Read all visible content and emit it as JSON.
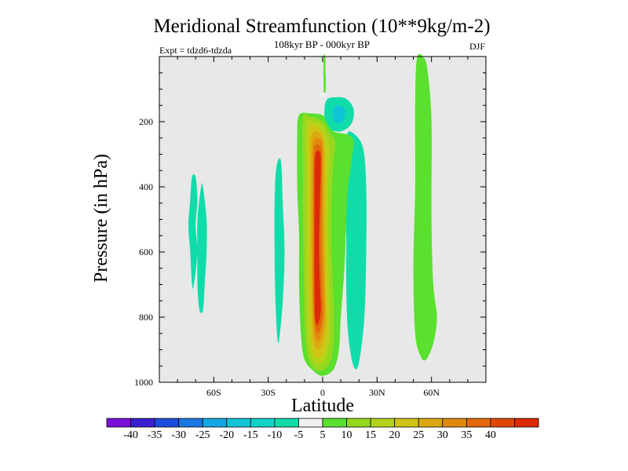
{
  "chart_data": {
    "type": "filled-contour",
    "title": "Meridional Streamfunction (10**9kg/m-2)",
    "subtitle": "108kyr BP - 000kyr BP",
    "left_label": "Expt = tdzd6-tdzda",
    "right_label": "DJF",
    "xlabel": "Latitude",
    "ylabel": "Pressure (in hPa)",
    "xlim": [
      -90,
      90
    ],
    "ylim": [
      1000,
      0
    ],
    "x_ticks": [
      {
        "value": -60,
        "label": "60S"
      },
      {
        "value": -30,
        "label": "30S"
      },
      {
        "value": 0,
        "label": "0"
      },
      {
        "value": 30,
        "label": "30N"
      },
      {
        "value": 60,
        "label": "60N"
      }
    ],
    "y_ticks": [
      {
        "value": 200,
        "label": "200"
      },
      {
        "value": 400,
        "label": "400"
      },
      {
        "value": 600,
        "label": "600"
      },
      {
        "value": 800,
        "label": "800"
      },
      {
        "value": 1000,
        "label": "1000"
      }
    ],
    "background_color": "#e8e8e8",
    "colorbar": {
      "colors": [
        "#7a10d8",
        "#3a22d0",
        "#1c4ddc",
        "#1a77e0",
        "#12a6e2",
        "#10c4d8",
        "#10d3c8",
        "#10dcaa",
        "#f0f0f0",
        "#5ae02e",
        "#96d81e",
        "#b4d41a",
        "#d0c414",
        "#dca810",
        "#e08a0e",
        "#e2680c",
        "#e0460a",
        "#dc2a08"
      ],
      "labels": [
        "-40",
        "-35",
        "-30",
        "-25",
        "-20",
        "-15",
        "-10",
        "-5",
        "5",
        "10",
        "15",
        "20",
        "25",
        "30",
        "35",
        "40"
      ]
    },
    "regions": [
      {
        "name": "sh-subtropical-negative",
        "color_index": 7,
        "points": [
          [
            -70,
            370
          ],
          [
            -69,
            440
          ],
          [
            -70,
            520
          ],
          [
            -69,
            600
          ],
          [
            -71,
            700
          ],
          [
            -72,
            700
          ],
          [
            -73,
            600
          ],
          [
            -74,
            520
          ],
          [
            -73,
            440
          ],
          [
            -72,
            370
          ]
        ]
      },
      {
        "name": "sh-midlat-negative",
        "color_index": 7,
        "points": [
          [
            -66,
            400
          ],
          [
            -64,
            500
          ],
          [
            -64,
            600
          ],
          [
            -65,
            700
          ],
          [
            -66,
            780
          ],
          [
            -68,
            775
          ],
          [
            -69,
            700
          ],
          [
            -69,
            600
          ],
          [
            -69,
            500
          ],
          [
            -67,
            400
          ]
        ]
      },
      {
        "name": "sh-tropical-negative",
        "color_index": 7,
        "points": [
          [
            -23,
            320
          ],
          [
            -22,
            450
          ],
          [
            -21,
            600
          ],
          [
            -22,
            750
          ],
          [
            -24,
            870
          ],
          [
            -25,
            860
          ],
          [
            -26,
            750
          ],
          [
            -26.5,
            600
          ],
          [
            -26.5,
            450
          ],
          [
            -25.5,
            340
          ]
        ]
      },
      {
        "name": "nh-subtropical-negative",
        "color_index": 7,
        "points": [
          [
            15,
            230
          ],
          [
            22,
            275
          ],
          [
            24,
            400
          ],
          [
            24,
            600
          ],
          [
            23,
            800
          ],
          [
            20,
            940
          ],
          [
            17,
            950
          ],
          [
            14,
            850
          ],
          [
            13,
            700
          ],
          [
            13,
            550
          ],
          [
            12,
            350
          ],
          [
            13,
            260
          ]
        ]
      },
      {
        "name": "upper-negative-cell",
        "color_index": 7,
        "points": [
          [
            2,
            135
          ],
          [
            7,
            125
          ],
          [
            13,
            130
          ],
          [
            17,
            160
          ],
          [
            16,
            205
          ],
          [
            10,
            230
          ],
          [
            3,
            220
          ],
          [
            1,
            185
          ]
        ]
      },
      {
        "name": "upper-negative-core",
        "color_index": 5,
        "points": [
          [
            6,
            160
          ],
          [
            9,
            150
          ],
          [
            12,
            160
          ],
          [
            12,
            190
          ],
          [
            9,
            205
          ],
          [
            6,
            195
          ]
        ]
      },
      {
        "name": "nh-polar-positive",
        "color_index": 9,
        "points": [
          [
            52,
            5
          ],
          [
            56,
            5
          ],
          [
            58,
            50
          ],
          [
            60,
            200
          ],
          [
            60,
            500
          ],
          [
            61,
            700
          ],
          [
            63,
            800
          ],
          [
            61,
            880
          ],
          [
            57,
            930
          ],
          [
            54,
            920
          ],
          [
            51,
            850
          ],
          [
            50,
            650
          ],
          [
            51,
            400
          ],
          [
            51,
            150
          ]
        ]
      },
      {
        "name": "main-cell-outer",
        "color_index": 9,
        "points": [
          [
            -13,
            180
          ],
          [
            -6,
            175
          ],
          [
            0,
            180
          ],
          [
            2,
            200
          ],
          [
            6,
            230
          ],
          [
            14,
            240
          ],
          [
            17,
            260
          ],
          [
            16,
            320
          ],
          [
            14,
            400
          ],
          [
            13,
            500
          ],
          [
            12,
            650
          ],
          [
            10,
            800
          ],
          [
            9,
            900
          ],
          [
            6,
            960
          ],
          [
            0,
            980
          ],
          [
            -5,
            965
          ],
          [
            -10,
            930
          ],
          [
            -12,
            850
          ],
          [
            -13,
            700
          ],
          [
            -13,
            550
          ],
          [
            -14,
            400
          ],
          [
            -14,
            250
          ]
        ]
      },
      {
        "name": "main-cell-level2",
        "color_index": 10,
        "points": [
          [
            -11,
            190
          ],
          [
            -7,
            185
          ],
          [
            -3,
            190
          ],
          [
            1,
            205
          ],
          [
            3,
            225
          ],
          [
            7,
            265
          ],
          [
            6,
            320
          ],
          [
            5,
            450
          ],
          [
            5,
            600
          ],
          [
            6,
            750
          ],
          [
            6,
            870
          ],
          [
            4,
            940
          ],
          [
            -1,
            965
          ],
          [
            -6,
            950
          ],
          [
            -9,
            900
          ],
          [
            -10,
            800
          ],
          [
            -10.5,
            650
          ],
          [
            -11,
            500
          ],
          [
            -11,
            350
          ]
        ]
      },
      {
        "name": "main-cell-level3",
        "color_index": 11,
        "points": [
          [
            -9,
            205
          ],
          [
            -5,
            198
          ],
          [
            -1,
            208
          ],
          [
            2,
            235
          ],
          [
            4,
            290
          ],
          [
            3,
            400
          ],
          [
            3,
            550
          ],
          [
            3.5,
            700
          ],
          [
            4,
            850
          ],
          [
            2,
            920
          ],
          [
            -2,
            945
          ],
          [
            -6,
            925
          ],
          [
            -8,
            860
          ],
          [
            -9,
            700
          ],
          [
            -9,
            500
          ],
          [
            -9,
            330
          ]
        ]
      },
      {
        "name": "main-cell-level4",
        "color_index": 12,
        "points": [
          [
            -7.5,
            220
          ],
          [
            -4,
            212
          ],
          [
            -1,
            225
          ],
          [
            1,
            260
          ],
          [
            2,
            330
          ],
          [
            2,
            450
          ],
          [
            2,
            600
          ],
          [
            2.5,
            750
          ],
          [
            2.5,
            860
          ],
          [
            0,
            915
          ],
          [
            -3,
            925
          ],
          [
            -6,
            895
          ],
          [
            -7,
            820
          ],
          [
            -7.5,
            650
          ],
          [
            -7.5,
            450
          ],
          [
            -8,
            300
          ]
        ]
      },
      {
        "name": "main-cell-level5",
        "color_index": 13,
        "points": [
          [
            -6,
            240
          ],
          [
            -3,
            230
          ],
          [
            0,
            250
          ],
          [
            1,
            300
          ],
          [
            1,
            420
          ],
          [
            1,
            580
          ],
          [
            1.5,
            720
          ],
          [
            1.5,
            830
          ],
          [
            -1,
            890
          ],
          [
            -4,
            895
          ],
          [
            -5.5,
            850
          ],
          [
            -6,
            750
          ],
          [
            -6.5,
            550
          ],
          [
            -6.5,
            380
          ],
          [
            -6.5,
            290
          ]
        ]
      },
      {
        "name": "main-cell-level6",
        "color_index": 14,
        "points": [
          [
            -5,
            260
          ],
          [
            -2,
            252
          ],
          [
            0,
            272
          ],
          [
            0,
            350
          ],
          [
            0,
            500
          ],
          [
            0.5,
            660
          ],
          [
            1,
            790
          ],
          [
            -1,
            860
          ],
          [
            -3.5,
            870
          ],
          [
            -5,
            820
          ],
          [
            -5.5,
            700
          ],
          [
            -5.5,
            500
          ],
          [
            -5.5,
            330
          ]
        ]
      },
      {
        "name": "main-cell-level7",
        "color_index": 15,
        "points": [
          [
            -4.5,
            280
          ],
          [
            -2,
            272
          ],
          [
            -0.5,
            295
          ],
          [
            -0.5,
            400
          ],
          [
            -1,
            550
          ],
          [
            -0.5,
            700
          ],
          [
            0,
            790
          ],
          [
            -1.5,
            840
          ],
          [
            -3.5,
            845
          ],
          [
            -4.5,
            790
          ],
          [
            -5,
            680
          ],
          [
            -5,
            500
          ],
          [
            -5,
            350
          ]
        ]
      },
      {
        "name": "main-cell-core",
        "color_index": 17,
        "points": [
          [
            -4,
            300
          ],
          [
            -1.5,
            293
          ],
          [
            -1,
            330
          ],
          [
            -1.5,
            450
          ],
          [
            -2,
            580
          ],
          [
            -1.5,
            700
          ],
          [
            -1,
            780
          ],
          [
            -2.5,
            820
          ],
          [
            -4,
            815
          ],
          [
            -4.5,
            760
          ],
          [
            -4.5,
            650
          ],
          [
            -4.5,
            500
          ],
          [
            -4.5,
            380
          ]
        ]
      },
      {
        "name": "equatorial-upper-filament",
        "color_index": 9,
        "points": [
          [
            0.5,
            0
          ],
          [
            1.5,
            0
          ],
          [
            1.5,
            40
          ],
          [
            1.8,
            80
          ],
          [
            1.5,
            115
          ],
          [
            0.7,
            110
          ],
          [
            0.5,
            60
          ]
        ]
      },
      {
        "name": "equatorial-white-gap",
        "color_index": 8,
        "points": [
          [
            -1.5,
            112
          ],
          [
            1.5,
            112
          ],
          [
            2,
            120
          ],
          [
            -1.5,
            122
          ]
        ]
      }
    ]
  }
}
